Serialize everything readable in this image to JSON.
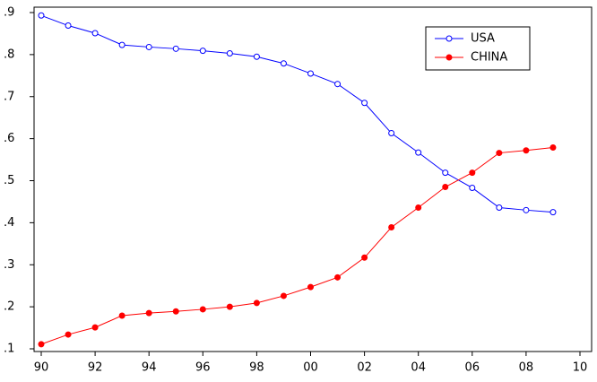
{
  "chart_data": {
    "type": "line",
    "x": [
      1990,
      1991,
      1992,
      1993,
      1994,
      1995,
      1996,
      1997,
      1998,
      1999,
      2000,
      2001,
      2002,
      2003,
      2004,
      2005,
      2006,
      2007,
      2008,
      2009
    ],
    "series": [
      {
        "name": "USA",
        "color": "#0000ff",
        "marker": "open-circle",
        "values": [
          0.893,
          0.869,
          0.851,
          0.823,
          0.818,
          0.814,
          0.809,
          0.803,
          0.795,
          0.779,
          0.755,
          0.73,
          0.685,
          0.613,
          0.567,
          0.519,
          0.483,
          0.436,
          0.43,
          0.425
        ]
      },
      {
        "name": "CHINA",
        "color": "#ff0000",
        "marker": "filled-circle",
        "values": [
          0.111,
          0.134,
          0.151,
          0.179,
          0.185,
          0.189,
          0.194,
          0.2,
          0.209,
          0.226,
          0.247,
          0.27,
          0.317,
          0.389,
          0.436,
          0.485,
          0.519,
          0.566,
          0.572,
          0.579
        ]
      }
    ],
    "xlim": [
      1990,
      2010
    ],
    "xticks": [
      {
        "value": 1990,
        "label": "90"
      },
      {
        "value": 1992,
        "label": "92"
      },
      {
        "value": 1994,
        "label": "94"
      },
      {
        "value": 1996,
        "label": "96"
      },
      {
        "value": 1998,
        "label": "98"
      },
      {
        "value": 2000,
        "label": "00"
      },
      {
        "value": 2002,
        "label": "02"
      },
      {
        "value": 2004,
        "label": "04"
      },
      {
        "value": 2006,
        "label": "06"
      },
      {
        "value": 2008,
        "label": "08"
      },
      {
        "value": 2010,
        "label": "10"
      }
    ],
    "ylim": [
      0.1,
      0.9
    ],
    "yticks": [
      {
        "value": 0.1,
        "label": ".1"
      },
      {
        "value": 0.2,
        "label": ".2"
      },
      {
        "value": 0.3,
        "label": ".3"
      },
      {
        "value": 0.4,
        "label": ".4"
      },
      {
        "value": 0.5,
        "label": ".5"
      },
      {
        "value": 0.6,
        "label": ".6"
      },
      {
        "value": 0.7,
        "label": ".7"
      },
      {
        "value": 0.8,
        "label": ".8"
      },
      {
        "value": 0.9,
        "label": ".9"
      }
    ],
    "grid": false,
    "legend": "upper right"
  }
}
